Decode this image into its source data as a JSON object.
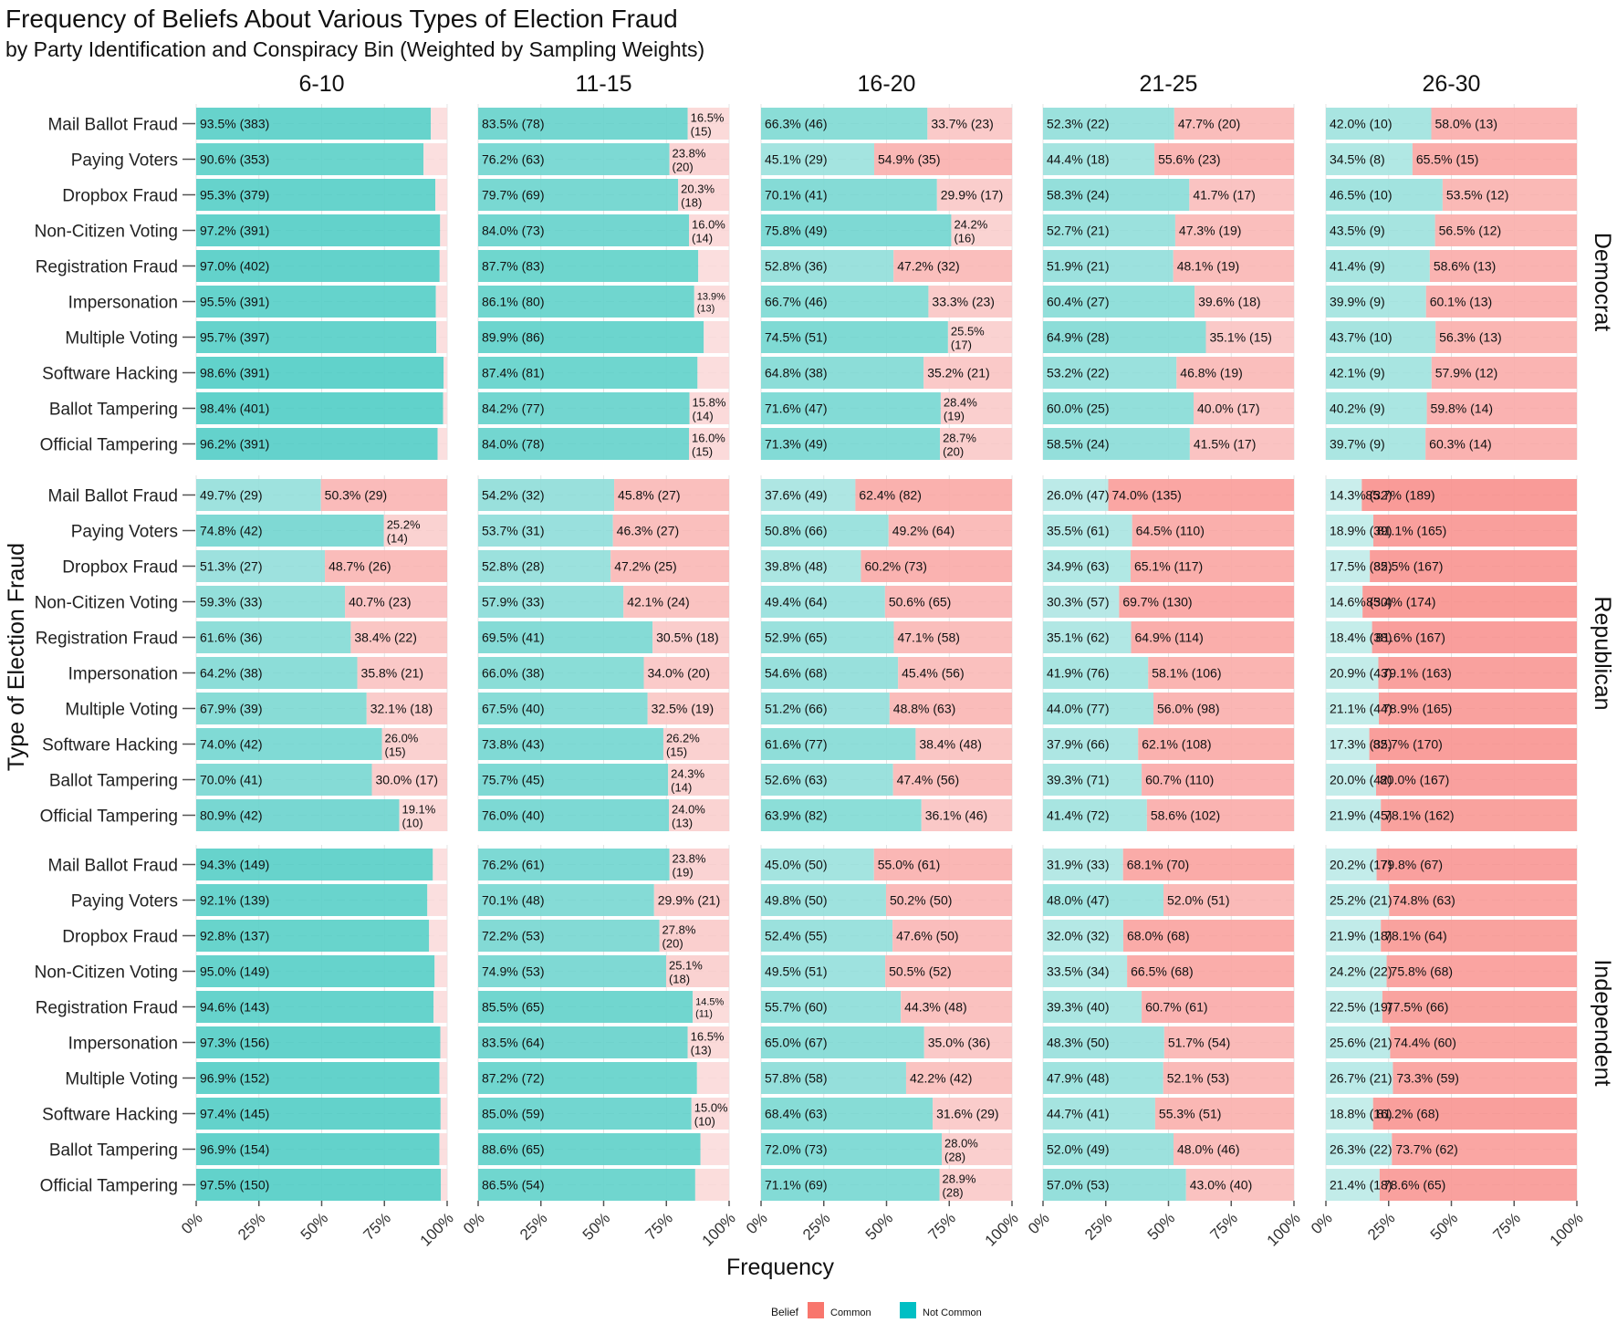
{
  "chart_data": {
    "type": "bar",
    "orientation": "horizontal",
    "stacked": true,
    "title": "Frequency of Beliefs About Various Types of Election Fraud",
    "subtitle": "by Party Identification and Conspiracy Bin (Weighted by Sampling Weights)",
    "xlabel": "Frequency",
    "ylabel": "Type of Election Fraud",
    "xlim": [
      0,
      100
    ],
    "x_ticks": [
      "0%",
      "25%",
      "50%",
      "75%",
      "100%"
    ],
    "legend": {
      "title": "Belief",
      "position": "bottom",
      "items": [
        {
          "label": "Common",
          "color": "#f8766d"
        },
        {
          "label": "Not Common",
          "color": "#00bfc4"
        }
      ]
    },
    "facet_columns": [
      "6-10",
      "11-15",
      "16-20",
      "21-25",
      "26-30"
    ],
    "facet_rows": [
      "Democrat",
      "Republican",
      "Independent"
    ],
    "categories": [
      "Mail Ballot Fraud",
      "Paying Voters",
      "Dropbox Fraud",
      "Non-Citizen Voting",
      "Registration Fraud",
      "Impersonation",
      "Multiple Voting",
      "Software Hacking",
      "Ballot Tampering",
      "Official Tampering"
    ],
    "panels": [
      {
        "party": "Democrat",
        "bin": "6-10",
        "not_common": [
          93.5,
          90.6,
          95.3,
          97.2,
          97.0,
          95.5,
          95.7,
          98.6,
          98.4,
          96.2
        ],
        "nc_n": [
          383,
          353,
          379,
          391,
          402,
          391,
          397,
          391,
          401,
          391
        ],
        "common_n": [
          null,
          null,
          null,
          null,
          null,
          null,
          null,
          null,
          null,
          null
        ]
      },
      {
        "party": "Democrat",
        "bin": "11-15",
        "not_common": [
          83.5,
          76.2,
          79.7,
          84.0,
          87.7,
          86.1,
          89.9,
          87.4,
          84.2,
          84.0
        ],
        "nc_n": [
          78,
          63,
          69,
          73,
          83,
          80,
          86,
          81,
          77,
          78
        ],
        "common_n": [
          15,
          20,
          18,
          14,
          null,
          13,
          null,
          null,
          14,
          15
        ]
      },
      {
        "party": "Democrat",
        "bin": "16-20",
        "not_common": [
          66.3,
          45.1,
          70.1,
          75.8,
          52.8,
          66.7,
          74.5,
          64.8,
          71.6,
          71.3
        ],
        "nc_n": [
          46,
          29,
          41,
          49,
          36,
          46,
          51,
          38,
          47,
          49
        ],
        "common_n": [
          23,
          35,
          17,
          16,
          32,
          23,
          17,
          21,
          19,
          20
        ]
      },
      {
        "party": "Democrat",
        "bin": "21-25",
        "not_common": [
          52.3,
          44.4,
          58.3,
          52.7,
          51.9,
          60.4,
          64.9,
          53.2,
          60.0,
          58.5
        ],
        "nc_n": [
          22,
          18,
          24,
          21,
          21,
          27,
          28,
          22,
          25,
          24
        ],
        "common_n": [
          20,
          23,
          17,
          19,
          19,
          18,
          15,
          19,
          17,
          17
        ]
      },
      {
        "party": "Democrat",
        "bin": "26-30",
        "not_common": [
          42.0,
          34.5,
          46.5,
          43.5,
          41.4,
          39.9,
          43.7,
          42.1,
          40.2,
          39.7
        ],
        "nc_n": [
          10,
          8,
          10,
          9,
          9,
          9,
          10,
          9,
          9,
          9
        ],
        "common_n": [
          13,
          15,
          12,
          12,
          13,
          13,
          13,
          12,
          14,
          14
        ]
      },
      {
        "party": "Republican",
        "bin": "6-10",
        "not_common": [
          49.7,
          74.8,
          51.3,
          59.3,
          61.6,
          64.2,
          67.9,
          74.0,
          70.0,
          80.9
        ],
        "nc_n": [
          29,
          42,
          27,
          33,
          36,
          38,
          39,
          42,
          41,
          42
        ],
        "common_n": [
          29,
          14,
          26,
          23,
          22,
          21,
          18,
          15,
          17,
          10
        ]
      },
      {
        "party": "Republican",
        "bin": "11-15",
        "not_common": [
          54.2,
          53.7,
          52.8,
          57.9,
          69.5,
          66.0,
          67.5,
          73.8,
          75.7,
          76.0
        ],
        "nc_n": [
          32,
          31,
          28,
          33,
          41,
          38,
          40,
          43,
          45,
          40
        ],
        "common_n": [
          27,
          27,
          25,
          24,
          18,
          20,
          19,
          15,
          14,
          13
        ]
      },
      {
        "party": "Republican",
        "bin": "16-20",
        "not_common": [
          37.6,
          50.8,
          39.8,
          49.4,
          52.9,
          54.6,
          51.2,
          61.6,
          52.6,
          63.9
        ],
        "nc_n": [
          49,
          66,
          48,
          64,
          65,
          68,
          66,
          77,
          63,
          82
        ],
        "common_n": [
          82,
          64,
          73,
          65,
          58,
          56,
          63,
          48,
          56,
          46
        ]
      },
      {
        "party": "Republican",
        "bin": "21-25",
        "not_common": [
          26.0,
          35.5,
          34.9,
          30.3,
          35.1,
          41.9,
          44.0,
          37.9,
          39.3,
          41.4
        ],
        "nc_n": [
          47,
          61,
          63,
          57,
          62,
          76,
          77,
          66,
          71,
          72
        ],
        "common_n": [
          135,
          110,
          117,
          130,
          114,
          106,
          98,
          108,
          110,
          102
        ]
      },
      {
        "party": "Republican",
        "bin": "26-30",
        "not_common": [
          14.3,
          18.9,
          17.5,
          14.6,
          18.4,
          20.9,
          21.1,
          17.3,
          20.0,
          21.9
        ],
        "nc_n": [
          32,
          39,
          35,
          30,
          38,
          43,
          44,
          35,
          42,
          45
        ],
        "common_n": [
          189,
          165,
          167,
          174,
          167,
          163,
          165,
          170,
          167,
          162
        ]
      },
      {
        "party": "Independent",
        "bin": "6-10",
        "not_common": [
          94.3,
          92.1,
          92.8,
          95.0,
          94.6,
          97.3,
          96.9,
          97.4,
          96.9,
          97.5
        ],
        "nc_n": [
          149,
          139,
          137,
          149,
          143,
          156,
          152,
          145,
          154,
          150
        ],
        "common_n": [
          null,
          null,
          null,
          null,
          null,
          null,
          null,
          null,
          null,
          null
        ]
      },
      {
        "party": "Independent",
        "bin": "11-15",
        "not_common": [
          76.2,
          70.1,
          72.2,
          74.9,
          85.5,
          83.5,
          87.2,
          85.0,
          88.6,
          86.5
        ],
        "nc_n": [
          61,
          48,
          53,
          53,
          65,
          64,
          72,
          59,
          65,
          54
        ],
        "common_n": [
          19,
          21,
          20,
          18,
          11,
          13,
          null,
          10,
          null,
          null
        ]
      },
      {
        "party": "Independent",
        "bin": "16-20",
        "not_common": [
          45.0,
          49.8,
          52.4,
          49.5,
          55.7,
          65.0,
          57.8,
          68.4,
          72.0,
          71.1
        ],
        "nc_n": [
          50,
          50,
          55,
          51,
          60,
          67,
          58,
          63,
          73,
          69
        ],
        "common_n": [
          61,
          50,
          50,
          52,
          48,
          36,
          42,
          29,
          28,
          28
        ]
      },
      {
        "party": "Independent",
        "bin": "21-25",
        "not_common": [
          31.9,
          48.0,
          32.0,
          33.5,
          39.3,
          48.3,
          47.9,
          44.7,
          52.0,
          57.0
        ],
        "nc_n": [
          33,
          47,
          32,
          34,
          40,
          50,
          48,
          41,
          49,
          53
        ],
        "common_n": [
          70,
          51,
          68,
          68,
          61,
          54,
          53,
          51,
          46,
          40
        ]
      },
      {
        "party": "Independent",
        "bin": "26-30",
        "not_common": [
          20.2,
          25.2,
          21.9,
          24.2,
          22.5,
          25.6,
          26.7,
          18.8,
          26.3,
          21.4
        ],
        "nc_n": [
          17,
          21,
          18,
          22,
          19,
          21,
          21,
          16,
          22,
          18
        ],
        "common_n": [
          67,
          63,
          64,
          68,
          66,
          60,
          59,
          68,
          62,
          65
        ]
      }
    ]
  }
}
